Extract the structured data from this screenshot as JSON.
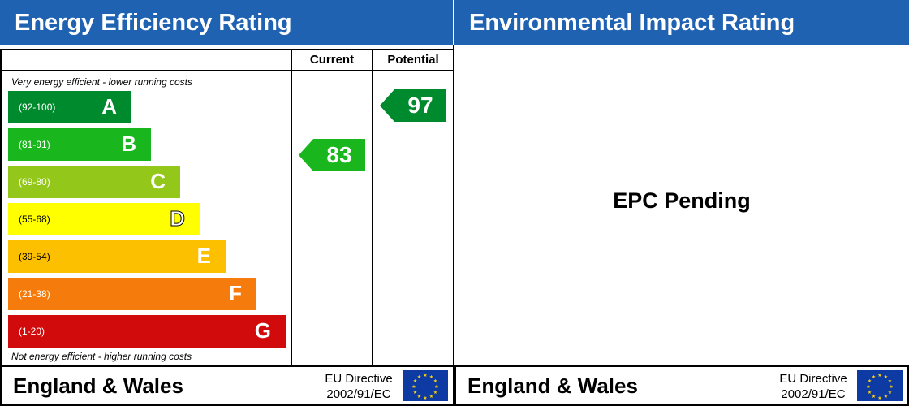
{
  "energy_efficiency": {
    "title": "Energy Efficiency Rating",
    "columns": {
      "current": "Current",
      "potential": "Potential"
    },
    "top_note": "Very energy efficient - lower running costs",
    "bottom_note": "Not energy efficient - higher running costs",
    "bands": [
      {
        "range": "(92-100)",
        "letter": "A",
        "color": "#008a2e"
      },
      {
        "range": "(81-91)",
        "letter": "B",
        "color": "#19b71d"
      },
      {
        "range": "(69-80)",
        "letter": "C",
        "color": "#93c81b"
      },
      {
        "range": "(55-68)",
        "letter": "D",
        "color": "#ffff00"
      },
      {
        "range": "(39-54)",
        "letter": "E",
        "color": "#fcc000"
      },
      {
        "range": "(21-38)",
        "letter": "F",
        "color": "#f57c0c"
      },
      {
        "range": "(1-20)",
        "letter": "G",
        "color": "#d10b0b"
      }
    ],
    "current": {
      "value": "83",
      "color": "#19b71d"
    },
    "potential": {
      "value": "97",
      "color": "#008a2e"
    },
    "footer": {
      "region": "England & Wales",
      "directive_line1": "EU Directive",
      "directive_line2": "2002/91/EC",
      "flag_icon": "eu-flag-icon"
    }
  },
  "environmental_impact": {
    "title": "Environmental Impact Rating",
    "status": "EPC Pending",
    "footer": {
      "region": "England & Wales",
      "directive_line1": "EU Directive",
      "directive_line2": "2002/91/EC",
      "flag_icon": "eu-flag-icon"
    }
  }
}
